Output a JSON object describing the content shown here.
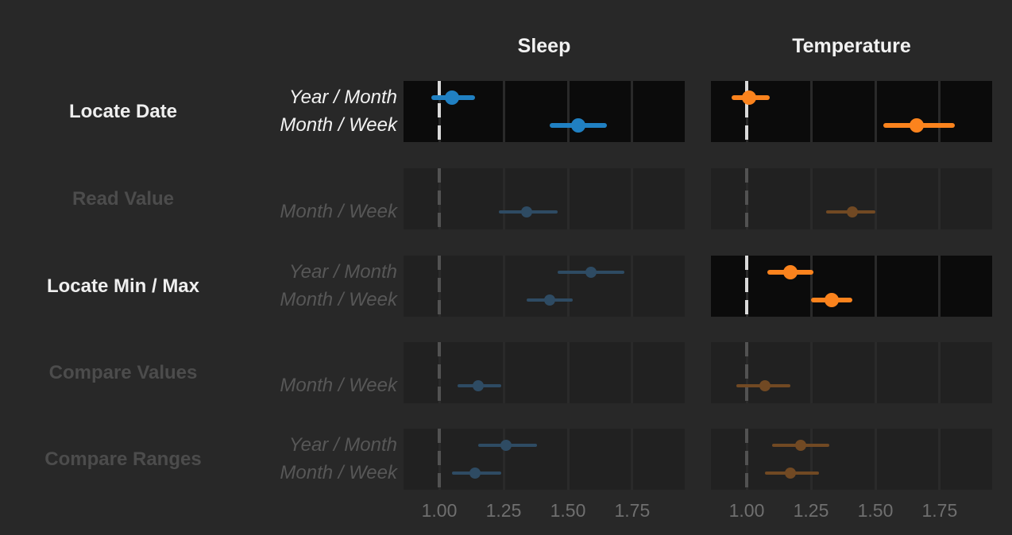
{
  "figure": {
    "description": "Forest plot of task performance ratios (with confidence intervals) for two data types, by time granularity"
  },
  "colors": {
    "background": "#282828",
    "panel_highlight": "#0b0b0b",
    "panel_dim": "#212121",
    "gridline": "#2a2a2a",
    "label_bright": "#efefef",
    "label_dim": "#4c4c4c",
    "sublabel_bright": "#f2f2f2",
    "sublabel_dim": "#575757",
    "tick_label": "#6f6f6f",
    "refline_bright": "#d9d9d9",
    "refline_dim": "#525252",
    "header": "#f2f2f2"
  },
  "chart_data": {
    "type": "scatter",
    "subtype": "dot-with-error-bars",
    "legend_position": "none",
    "grid": true,
    "columns": [
      {
        "label": "Sleep",
        "accent": "#2080c2",
        "accent_dim": "#2e4b63"
      },
      {
        "label": "Temperature",
        "accent": "#fb831d",
        "accent_dim": "#714923"
      }
    ],
    "x_axis": {
      "tick_labels": [
        "1.00",
        "1.25",
        "1.50",
        "1.75"
      ],
      "tick_values": [
        1.0,
        1.25,
        1.5,
        1.75
      ],
      "range": [
        0.861,
        1.954
      ],
      "reference_line": 1.0
    },
    "rows": [
      {
        "task": "Locate Date",
        "task_highlighted": true,
        "sublabels_highlighted": true,
        "granularities": [
          "Year / Month",
          "Month / Week"
        ],
        "panels": [
          {
            "column": "Sleep",
            "highlighted": true,
            "points": [
              {
                "granularity": "Year / Month",
                "value": 1.05,
                "ci_low": 0.97,
                "ci_high": 1.14
              },
              {
                "granularity": "Month / Week",
                "value": 1.54,
                "ci_low": 1.43,
                "ci_high": 1.65
              }
            ]
          },
          {
            "column": "Temperature",
            "highlighted": true,
            "points": [
              {
                "granularity": "Year / Month",
                "value": 1.01,
                "ci_low": 0.94,
                "ci_high": 1.09
              },
              {
                "granularity": "Month / Week",
                "value": 1.66,
                "ci_low": 1.53,
                "ci_high": 1.81
              }
            ]
          }
        ]
      },
      {
        "task": "Read Value",
        "task_highlighted": false,
        "sublabels_highlighted": false,
        "granularities": [
          "Month / Week"
        ],
        "panels": [
          {
            "column": "Sleep",
            "highlighted": false,
            "points": [
              {
                "granularity": "Month / Week",
                "value": 1.34,
                "ci_low": 1.23,
                "ci_high": 1.46
              }
            ]
          },
          {
            "column": "Temperature",
            "highlighted": false,
            "points": [
              {
                "granularity": "Month / Week",
                "value": 1.41,
                "ci_low": 1.31,
                "ci_high": 1.5
              }
            ]
          }
        ]
      },
      {
        "task": "Locate Min / Max",
        "task_highlighted": true,
        "sublabels_highlighted": false,
        "granularities": [
          "Year / Month",
          "Month / Week"
        ],
        "panels": [
          {
            "column": "Sleep",
            "highlighted": false,
            "points": [
              {
                "granularity": "Year / Month",
                "value": 1.59,
                "ci_low": 1.46,
                "ci_high": 1.72
              },
              {
                "granularity": "Month / Week",
                "value": 1.43,
                "ci_low": 1.34,
                "ci_high": 1.52
              }
            ]
          },
          {
            "column": "Temperature",
            "highlighted": true,
            "points": [
              {
                "granularity": "Year / Month",
                "value": 1.17,
                "ci_low": 1.08,
                "ci_high": 1.26
              },
              {
                "granularity": "Month / Week",
                "value": 1.33,
                "ci_low": 1.25,
                "ci_high": 1.41
              }
            ]
          }
        ]
      },
      {
        "task": "Compare Values",
        "task_highlighted": false,
        "sublabels_highlighted": false,
        "granularities": [
          "Month / Week"
        ],
        "panels": [
          {
            "column": "Sleep",
            "highlighted": false,
            "points": [
              {
                "granularity": "Month / Week",
                "value": 1.15,
                "ci_low": 1.07,
                "ci_high": 1.24
              }
            ]
          },
          {
            "column": "Temperature",
            "highlighted": false,
            "points": [
              {
                "granularity": "Month / Week",
                "value": 1.07,
                "ci_low": 0.96,
                "ci_high": 1.17
              }
            ]
          }
        ]
      },
      {
        "task": "Compare Ranges",
        "task_highlighted": false,
        "sublabels_highlighted": false,
        "granularities": [
          "Year / Month",
          "Month / Week"
        ],
        "panels": [
          {
            "column": "Sleep",
            "highlighted": false,
            "points": [
              {
                "granularity": "Year / Month",
                "value": 1.26,
                "ci_low": 1.15,
                "ci_high": 1.38
              },
              {
                "granularity": "Month / Week",
                "value": 1.14,
                "ci_low": 1.05,
                "ci_high": 1.24
              }
            ]
          },
          {
            "column": "Temperature",
            "highlighted": false,
            "points": [
              {
                "granularity": "Year / Month",
                "value": 1.21,
                "ci_low": 1.1,
                "ci_high": 1.32
              },
              {
                "granularity": "Month / Week",
                "value": 1.17,
                "ci_low": 1.07,
                "ci_high": 1.28
              }
            ]
          }
        ]
      }
    ]
  }
}
